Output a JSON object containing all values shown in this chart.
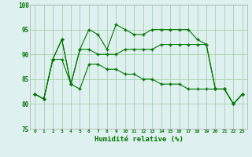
{
  "xlabel": "Humidité relative (%)",
  "background_color": "#dff0f0",
  "grid_color": "#99cc99",
  "line_color": "#007700",
  "series": [
    [
      82,
      81,
      89,
      93,
      84,
      91,
      95,
      94,
      91,
      96,
      95,
      94,
      94,
      95,
      95,
      95,
      95,
      95,
      93,
      92,
      83,
      83,
      80,
      82
    ],
    [
      82,
      81,
      89,
      93,
      84,
      91,
      91,
      90,
      90,
      90,
      91,
      91,
      91,
      91,
      92,
      92,
      92,
      92,
      92,
      92,
      83,
      83,
      80,
      82
    ],
    [
      82,
      81,
      89,
      89,
      84,
      83,
      88,
      88,
      87,
      87,
      86,
      86,
      85,
      85,
      84,
      84,
      84,
      83,
      83,
      83,
      83,
      83,
      80,
      82
    ]
  ],
  "xmin": 0,
  "xmax": 23,
  "ymin": 75,
  "ymax": 100,
  "yticks": [
    75,
    80,
    85,
    90,
    95,
    100
  ],
  "xticks": [
    0,
    1,
    2,
    3,
    4,
    5,
    6,
    7,
    8,
    9,
    10,
    11,
    12,
    13,
    14,
    15,
    16,
    17,
    18,
    19,
    20,
    21,
    22,
    23
  ]
}
